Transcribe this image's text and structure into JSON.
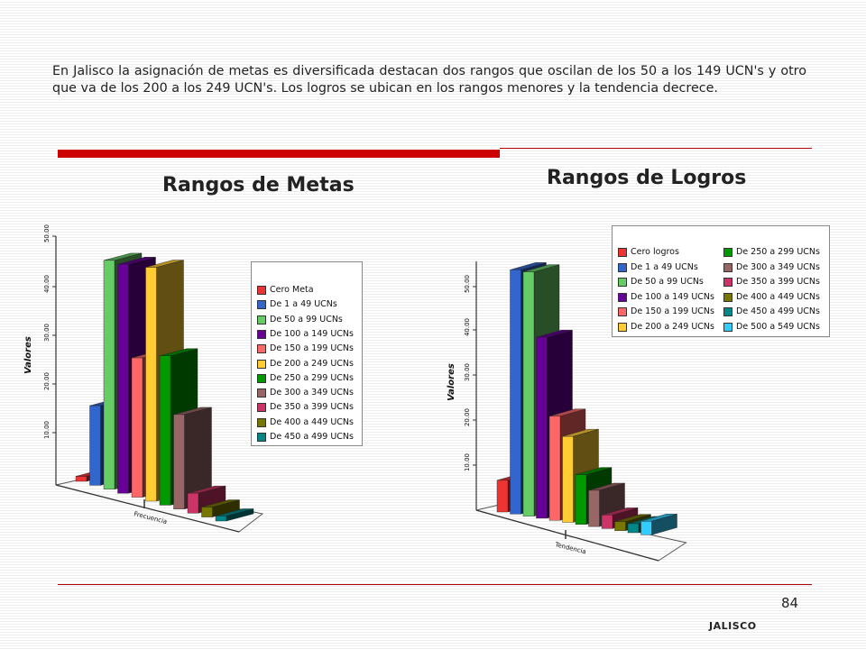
{
  "intro_text": "En Jalisco la asignación de metas es diversificada destacan dos rangos que oscilan de los 50 a los 149 UCN's y otro que va de los 200 a los 249 UCN's. Los logros se ubican en los rangos menores y la tendencia decrece.",
  "page_number": "84",
  "footer": "JALISCO",
  "colors": {
    "accent_red": "#cc0000"
  },
  "chart_data": [
    {
      "type": "bar",
      "title": "Rangos de Metas",
      "ylabel": "Valores",
      "xlabel": "",
      "x_tick_label": "Frecuencia",
      "yticks": [
        "50.00",
        "40.00",
        "30.00",
        "20.00",
        "10.00"
      ],
      "ylim": [
        0,
        50
      ],
      "grid": false,
      "legend_position": "right",
      "series": [
        {
          "name": "Cero Meta",
          "value": 1,
          "color": "#ee3333"
        },
        {
          "name": "De 1 a 49 UCNs",
          "value": 16,
          "color": "#3366cc"
        },
        {
          "name": "De 50 a 99 UCNs",
          "value": 46,
          "color": "#66cc66"
        },
        {
          "name": "De 100 a 149 UCNs",
          "value": 46,
          "color": "#660099"
        },
        {
          "name": "De 150 a 199 UCNs",
          "value": 28,
          "color": "#ff6666"
        },
        {
          "name": "De 200 a 249 UCNs",
          "value": 47,
          "color": "#ffcc33"
        },
        {
          "name": "De 250 a 299 UCNs",
          "value": 30,
          "color": "#009900"
        },
        {
          "name": "De 300 a 349 UCNs",
          "value": 19,
          "color": "#996666"
        },
        {
          "name": "De 350 a 399 UCNs",
          "value": 4,
          "color": "#cc3366"
        },
        {
          "name": "De 400 a 449 UCNs",
          "value": 2,
          "color": "#777700"
        },
        {
          "name": "De 450 a 499 UCNs",
          "value": 1,
          "color": "#008888"
        }
      ]
    },
    {
      "type": "bar",
      "title": "Rangos de Logros",
      "ylabel": "Valores",
      "xlabel": "",
      "x_tick_label": "Tendencia",
      "yticks": [
        "50.00",
        "40.00",
        "30.00",
        "20.00",
        "10.00"
      ],
      "ylim": [
        0,
        55
      ],
      "grid": false,
      "legend_position": "top-right",
      "series": [
        {
          "name": "Cero logros",
          "value": 7,
          "color": "#ee3333"
        },
        {
          "name": "De 1 a 49 UCNs",
          "value": 54,
          "color": "#3366cc"
        },
        {
          "name": "De 50 a 99 UCNs",
          "value": 54,
          "color": "#66cc66"
        },
        {
          "name": "De 100 a 149 UCNs",
          "value": 40,
          "color": "#660099"
        },
        {
          "name": "De 150 a 199 UCNs",
          "value": 23,
          "color": "#ff6666"
        },
        {
          "name": "De 200 a 249 UCNs",
          "value": 19,
          "color": "#ffcc33"
        },
        {
          "name": "De 250 a 299 UCNs",
          "value": 11,
          "color": "#009900"
        },
        {
          "name": "De 300 a 349 UCNs",
          "value": 8,
          "color": "#996666"
        },
        {
          "name": "De 350 a 399 UCNs",
          "value": 3,
          "color": "#cc3366"
        },
        {
          "name": "De 400 a 449 UCNs",
          "value": 2,
          "color": "#777700"
        },
        {
          "name": "De 450 a 499 UCNs",
          "value": 2,
          "color": "#008888"
        },
        {
          "name": "De 500 a 549 UCNs",
          "value": 3,
          "color": "#33ccff"
        }
      ]
    }
  ]
}
